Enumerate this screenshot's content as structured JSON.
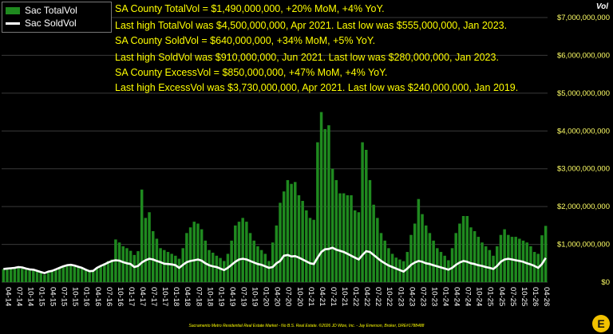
{
  "legend": {
    "bar_label": "Sac TotalVol",
    "line_label": "Sac SoldVol"
  },
  "annotations": [
    "SA County TotalVol = $1,490,000,000, +20% MoM, +4% YoY.",
    "Last high TotalVol was $4,500,000,000, Apr 2021. Last low was $555,000,000, Jan 2023.",
    "SA County SoldVol = $640,000,000, +34% MoM, +5% YoY.",
    "Last high SoldVol was $910,000,000, Jun 2021. Last low was $280,000,000, Jan 2023.",
    "SA County ExcessVol = $850,000,000, +47% MoM, +4% YoY.",
    "Last high ExcessVol was $3,730,000,000, Apr 2021. Last low was $240,000,000, Jan 2019."
  ],
  "footer": "Sacramento Metro Residential Real Estate Market - No B.S. Real Estate. ©2026 JD Wize, Inc. - Jay Emerson, Broker, DRE#1788488",
  "logo_text": "E",
  "colors": {
    "bar": "#1f8a1f",
    "line": "#ffffff",
    "annotation": "#ffff00",
    "background": "#000000"
  },
  "chart_data": {
    "type": "bar",
    "title": "",
    "ylabel": "Vol",
    "ylim": [
      0,
      7000000000
    ],
    "y_ticks": [
      "$0",
      "$1,000,000,000",
      "$2,000,000,000",
      "$3,000,000,000",
      "$4,000,000,000",
      "$5,000,000,000",
      "$6,000,000,000",
      "$7,000,000,000"
    ],
    "x_tick_labels": [
      "04-14",
      "07-14",
      "10-14",
      "01-15",
      "04-15",
      "07-15",
      "10-15",
      "01-16",
      "04-16",
      "07-16",
      "10-16",
      "01-17",
      "04-17",
      "07-17",
      "10-17",
      "01-18",
      "04-18",
      "07-18",
      "10-18",
      "01-19",
      "04-19",
      "07-19",
      "10-19",
      "01-20",
      "04-20",
      "07-20",
      "10-20",
      "01-21",
      "04-21",
      "07-21",
      "10-21",
      "01-22",
      "04-22",
      "07-22",
      "10-22",
      "01-23",
      "04-23",
      "07-23",
      "10-23",
      "01-24",
      "04-24",
      "07-24",
      "10-24",
      "01-25",
      "04-25",
      "07-25",
      "10-25",
      "01-26",
      "04-26"
    ],
    "x_start": "2014-04",
    "x_end": "2026-04",
    "series": [
      {
        "name": "Sac TotalVol",
        "kind": "bar",
        "values": [
          350000000,
          350000000,
          360000000,
          370000000,
          380000000,
          360000000,
          330000000,
          330000000,
          330000000,
          280000000,
          250000000,
          200000000,
          250000000,
          280000000,
          320000000,
          380000000,
          420000000,
          450000000,
          450000000,
          430000000,
          410000000,
          380000000,
          350000000,
          300000000,
          300000000,
          380000000,
          440000000,
          500000000,
          560000000,
          600000000,
          1130000000,
          1050000000,
          950000000,
          900000000,
          830000000,
          720000000,
          820000000,
          2450000000,
          1700000000,
          1850000000,
          1350000000,
          1150000000,
          900000000,
          850000000,
          800000000,
          750000000,
          700000000,
          620000000,
          900000000,
          1300000000,
          1450000000,
          1600000000,
          1550000000,
          1400000000,
          1100000000,
          850000000,
          780000000,
          700000000,
          640000000,
          560000000,
          750000000,
          1100000000,
          1500000000,
          1600000000,
          1700000000,
          1600000000,
          1300000000,
          1100000000,
          950000000,
          850000000,
          750000000,
          560000000,
          1050000000,
          1500000000,
          2100000000,
          2400000000,
          2700000000,
          2600000000,
          2650000000,
          2300000000,
          2150000000,
          1900000000,
          1700000000,
          1650000000,
          3700000000,
          4500000000,
          4050000000,
          4150000000,
          3000000000,
          2700000000,
          2350000000,
          2350000000,
          2300000000,
          2300000000,
          1900000000,
          1850000000,
          3700000000,
          3500000000,
          2700000000,
          2050000000,
          1700000000,
          1300000000,
          1100000000,
          900000000,
          750000000,
          650000000,
          600000000,
          555000000,
          800000000,
          1250000000,
          1550000000,
          2200000000,
          1800000000,
          1500000000,
          1300000000,
          1100000000,
          900000000,
          800000000,
          700000000,
          580000000,
          900000000,
          1300000000,
          1550000000,
          1750000000,
          1750000000,
          1450000000,
          1350000000,
          1200000000,
          1050000000,
          950000000,
          850000000,
          700000000,
          950000000,
          1250000000,
          1400000000,
          1250000000,
          1200000000,
          1200000000,
          1150000000,
          1100000000,
          1050000000,
          950000000,
          800000000,
          750000000,
          1240000000,
          1490000000
        ]
      },
      {
        "name": "Sac SoldVol",
        "kind": "line",
        "values": [
          350000000,
          360000000,
          370000000,
          380000000,
          400000000,
          390000000,
          360000000,
          340000000,
          330000000,
          300000000,
          270000000,
          240000000,
          280000000,
          300000000,
          340000000,
          380000000,
          420000000,
          450000000,
          460000000,
          440000000,
          410000000,
          380000000,
          330000000,
          290000000,
          300000000,
          380000000,
          430000000,
          470000000,
          520000000,
          560000000,
          580000000,
          570000000,
          530000000,
          500000000,
          480000000,
          400000000,
          430000000,
          520000000,
          580000000,
          620000000,
          600000000,
          560000000,
          530000000,
          490000000,
          480000000,
          470000000,
          450000000,
          380000000,
          460000000,
          530000000,
          560000000,
          580000000,
          600000000,
          570000000,
          500000000,
          450000000,
          420000000,
          400000000,
          360000000,
          320000000,
          380000000,
          460000000,
          540000000,
          600000000,
          620000000,
          600000000,
          560000000,
          520000000,
          480000000,
          460000000,
          420000000,
          380000000,
          400000000,
          500000000,
          560000000,
          700000000,
          720000000,
          680000000,
          690000000,
          650000000,
          600000000,
          550000000,
          500000000,
          480000000,
          650000000,
          800000000,
          870000000,
          880000000,
          910000000,
          860000000,
          830000000,
          800000000,
          750000000,
          700000000,
          650000000,
          600000000,
          720000000,
          820000000,
          800000000,
          720000000,
          640000000,
          560000000,
          500000000,
          440000000,
          400000000,
          360000000,
          320000000,
          280000000,
          360000000,
          460000000,
          520000000,
          560000000,
          540000000,
          500000000,
          480000000,
          450000000,
          420000000,
          390000000,
          360000000,
          330000000,
          380000000,
          460000000,
          520000000,
          560000000,
          540000000,
          500000000,
          480000000,
          450000000,
          430000000,
          400000000,
          380000000,
          350000000,
          430000000,
          540000000,
          600000000,
          620000000,
          600000000,
          580000000,
          560000000,
          540000000,
          500000000,
          470000000,
          430000000,
          380000000,
          480000000,
          640000000
        ]
      }
    ]
  }
}
